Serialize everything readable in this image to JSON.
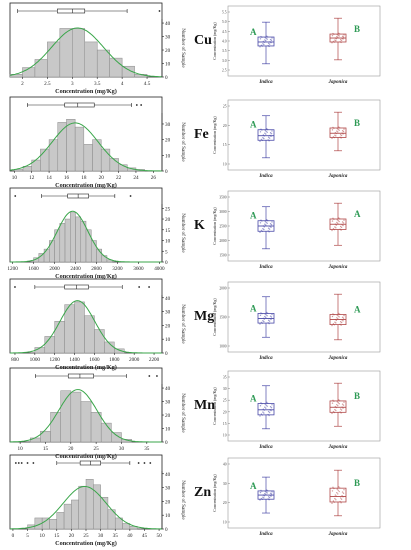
{
  "chart_data": [
    {
      "element": "Cu",
      "histogram": {
        "type": "bar",
        "ticks": [
          "2",
          "2.5",
          "3",
          "3.5",
          "4",
          "4.5"
        ],
        "tick_values": [
          2,
          2.5,
          3,
          3.5,
          4,
          4.5
        ],
        "xlim": [
          1.75,
          4.8
        ],
        "bin_edges": [
          1.75,
          2.0,
          2.25,
          2.5,
          2.75,
          3.0,
          3.25,
          3.5,
          3.75,
          4.0,
          4.25,
          4.5
        ],
        "counts": [
          2,
          7,
          13,
          26,
          36,
          36,
          26,
          20,
          14,
          8,
          2
        ],
        "y_ticks": [
          0,
          10,
          20,
          30,
          40
        ],
        "ylim": [
          0,
          43
        ],
        "xlabel": "Concentration (mg/Kg)",
        "ylabel": "Number of Sample",
        "box": {
          "min": 1.9,
          "q1": 2.7,
          "median": 3.0,
          "q3": 3.25,
          "max": 4.1,
          "outliers": [
            4.75
          ]
        }
      },
      "boxplot": {
        "ylabel": "Concentration (mg/Kg)",
        "y_ticks": [
          "2.5",
          "3.0",
          "3.5",
          "4.0",
          "4.5",
          "5.0",
          "5.5"
        ],
        "groups": [
          {
            "name": "Indica",
            "letter": "A",
            "min": 2.4,
            "q1": 3.3,
            "median": 3.5,
            "q3": 3.75,
            "max": 4.5
          },
          {
            "name": "Japonica",
            "letter": "B",
            "min": 2.6,
            "q1": 3.5,
            "median": 3.7,
            "q3": 3.9,
            "max": 4.7
          }
        ]
      }
    },
    {
      "element": "Fe",
      "histogram": {
        "type": "bar",
        "ticks": [
          "10",
          "12",
          "14",
          "16",
          "18",
          "20",
          "22",
          "24",
          "26"
        ],
        "tick_values": [
          10,
          12,
          14,
          16,
          18,
          20,
          22,
          24,
          26
        ],
        "xlim": [
          9.5,
          27
        ],
        "bin_edges": [
          10,
          11,
          12,
          13,
          14,
          15,
          16,
          17,
          18,
          19,
          20,
          21,
          22,
          23,
          24,
          25
        ],
        "counts": [
          1,
          3,
          7,
          14,
          20,
          31,
          33,
          28,
          17,
          20,
          14,
          8,
          4,
          2,
          1
        ],
        "y_ticks": [
          0,
          10,
          20,
          30
        ],
        "ylim": [
          0,
          37
        ],
        "xlabel": "Concentration (mg/Kg)",
        "ylabel": "Number of Sample",
        "box": {
          "min": 11.5,
          "q1": 15.8,
          "median": 17.3,
          "q3": 19.2,
          "max": 23.5,
          "outliers": [
            24.1,
            24.6
          ]
        }
      },
      "boxplot": {
        "ylabel": "Concentration (mg/Kg)",
        "y_ticks": [
          "10",
          "15",
          "20",
          "25"
        ],
        "groups": [
          {
            "name": "Indica",
            "letter": "A",
            "min": 10.5,
            "q1": 15.5,
            "median": 16.8,
            "q3": 18.5,
            "max": 22.5
          },
          {
            "name": "Japonica",
            "letter": "B",
            "min": 12.5,
            "q1": 16.3,
            "median": 17.5,
            "q3": 19.0,
            "max": 23.5
          }
        ]
      }
    },
    {
      "element": "K",
      "histogram": {
        "type": "bar",
        "ticks": [
          "1200",
          "1600",
          "2000",
          "2400",
          "2800",
          "3200",
          "3600",
          "4000"
        ],
        "tick_values": [
          1200,
          1600,
          2000,
          2400,
          2800,
          3200,
          3600,
          4000
        ],
        "xlim": [
          1150,
          4050
        ],
        "bin_edges": [
          1600,
          1700,
          1800,
          1900,
          2000,
          2100,
          2200,
          2300,
          2400,
          2500,
          2600,
          2700,
          2800,
          2900,
          3000,
          3100
        ],
        "counts": [
          2,
          4,
          6,
          10,
          15,
          18,
          20,
          23,
          21,
          19,
          15,
          10,
          6,
          3,
          1
        ],
        "y_ticks": [
          0,
          5,
          10,
          15,
          20,
          25
        ],
        "ylim": [
          0,
          27
        ],
        "xlabel": "Concentration (mg/Kg)",
        "ylabel": "Number of Sample",
        "box": {
          "min": 1750,
          "q1": 2250,
          "median": 2450,
          "q3": 2650,
          "max": 3150,
          "outliers": [
            1250,
            3450
          ]
        }
      },
      "boxplot": {
        "ylabel": "Concentration (mg/Kg)",
        "y_ticks": [
          "1500",
          "2000",
          "2500",
          "3000",
          "3500"
        ],
        "groups": [
          {
            "name": "Indica",
            "letter": "A",
            "min": 1800,
            "q1": 2300,
            "median": 2450,
            "q3": 2600,
            "max": 3000
          },
          {
            "name": "Japonica",
            "letter": "A",
            "min": 1900,
            "q1": 2350,
            "median": 2500,
            "q3": 2650,
            "max": 3100
          }
        ]
      }
    },
    {
      "element": "Mg",
      "histogram": {
        "type": "bar",
        "ticks": [
          "800",
          "1000",
          "1200",
          "1400",
          "1600",
          "1800",
          "2000",
          "2200"
        ],
        "tick_values": [
          800,
          1000,
          1200,
          1400,
          1600,
          1800,
          2000,
          2200
        ],
        "xlim": [
          750,
          2280
        ],
        "bin_edges": [
          1000,
          1100,
          1200,
          1300,
          1400,
          1500,
          1600,
          1700,
          1800,
          1900
        ],
        "counts": [
          4,
          12,
          23,
          35,
          37,
          27,
          17,
          8,
          3
        ],
        "y_ticks": [
          0,
          10,
          20,
          30,
          40
        ],
        "ylim": [
          0,
          42
        ],
        "xlabel": "Concentration (mg/Kg)",
        "ylabel": "Number of Sample",
        "box": {
          "min": 1000,
          "q1": 1300,
          "median": 1420,
          "q3": 1540,
          "max": 1880,
          "outliers": [
            800,
            2050,
            2150
          ]
        }
      },
      "boxplot": {
        "ylabel": "Concentration (mg/Kg)",
        "y_ticks": [
          "1000",
          "1500",
          "2000"
        ],
        "groups": [
          {
            "name": "Indica",
            "letter": "A",
            "min": 1050,
            "q1": 1330,
            "median": 1420,
            "q3": 1520,
            "max": 1850
          },
          {
            "name": "Japonica",
            "letter": "A",
            "min": 1000,
            "q1": 1300,
            "median": 1400,
            "q3": 1500,
            "max": 1900
          }
        ]
      }
    },
    {
      "element": "Mn",
      "histogram": {
        "type": "bar",
        "ticks": [
          "10",
          "15",
          "20",
          "25",
          "30",
          "35"
        ],
        "tick_values": [
          10,
          15,
          20,
          25,
          30,
          35
        ],
        "xlim": [
          8,
          38
        ],
        "bin_edges": [
          12,
          14,
          16,
          18,
          20,
          22,
          24,
          26,
          28,
          30,
          32
        ],
        "counts": [
          3,
          8,
          22,
          38,
          37,
          30,
          22,
          14,
          7,
          2
        ],
        "y_ticks": [
          0,
          10,
          20,
          30,
          40
        ],
        "ylim": [
          0,
          43
        ],
        "xlabel": "Concentration (mg/Kg)",
        "ylabel": "Number of Sample",
        "box": {
          "min": 13,
          "q1": 19.5,
          "median": 21.8,
          "q3": 24.5,
          "max": 31,
          "outliers": [
            35.5,
            37
          ]
        }
      },
      "boxplot": {
        "ylabel": "Concentration (mg/Kg)",
        "y_ticks": [
          "10",
          "15",
          "20",
          "25",
          "30",
          "35"
        ],
        "groups": [
          {
            "name": "Indica",
            "letter": "A",
            "min": 13,
            "q1": 18.5,
            "median": 20.5,
            "q3": 23,
            "max": 30
          },
          {
            "name": "Japonica",
            "letter": "B",
            "min": 14,
            "q1": 19.5,
            "median": 21.5,
            "q3": 24,
            "max": 31
          }
        ]
      }
    },
    {
      "element": "Zn",
      "histogram": {
        "type": "bar",
        "ticks": [
          "0",
          "5",
          "10",
          "15",
          "20",
          "25",
          "30",
          "35",
          "40",
          "45",
          "50"
        ],
        "tick_values": [
          0,
          5,
          10,
          15,
          20,
          25,
          30,
          35,
          40,
          45,
          50
        ],
        "xlim": [
          -1,
          51
        ],
        "bin_edges": [
          5,
          7.5,
          10,
          12.5,
          15,
          17.5,
          20,
          22.5,
          25,
          27.5,
          30,
          32.5,
          35,
          37.5,
          40,
          42.5
        ],
        "counts": [
          3,
          8,
          8,
          7,
          12,
          18,
          21,
          31,
          36,
          32,
          23,
          14,
          8,
          4,
          2
        ],
        "y_ticks": [
          0,
          10,
          20,
          30,
          40
        ],
        "ylim": [
          0,
          42
        ],
        "xlabel": "Concentration (mg/Kg)",
        "ylabel": "Number of Sample",
        "box": {
          "min": 15,
          "q1": 23,
          "median": 26.5,
          "q3": 30,
          "max": 40,
          "outliers": [
            1,
            2,
            3,
            5,
            7,
            43,
            45,
            47
          ]
        }
      },
      "boxplot": {
        "ylabel": "Concentration (mg/Kg)",
        "y_ticks": [
          "10",
          "20",
          "30",
          "40"
        ],
        "groups": [
          {
            "name": "Indica",
            "letter": "A",
            "min": 12,
            "q1": 22,
            "median": 25,
            "q3": 28,
            "max": 38
          },
          {
            "name": "Japonica",
            "letter": "B",
            "min": 10,
            "q1": 20,
            "median": 24,
            "q3": 30,
            "max": 43
          }
        ]
      }
    }
  ],
  "colors": {
    "bar": "#c8c8c8",
    "bar_stroke": "#8a8a8a",
    "curve": "#3aa64a",
    "indica": "#4a4aa8",
    "japonica": "#b04848",
    "letter": "#2e9a55",
    "axis": "#222222"
  }
}
